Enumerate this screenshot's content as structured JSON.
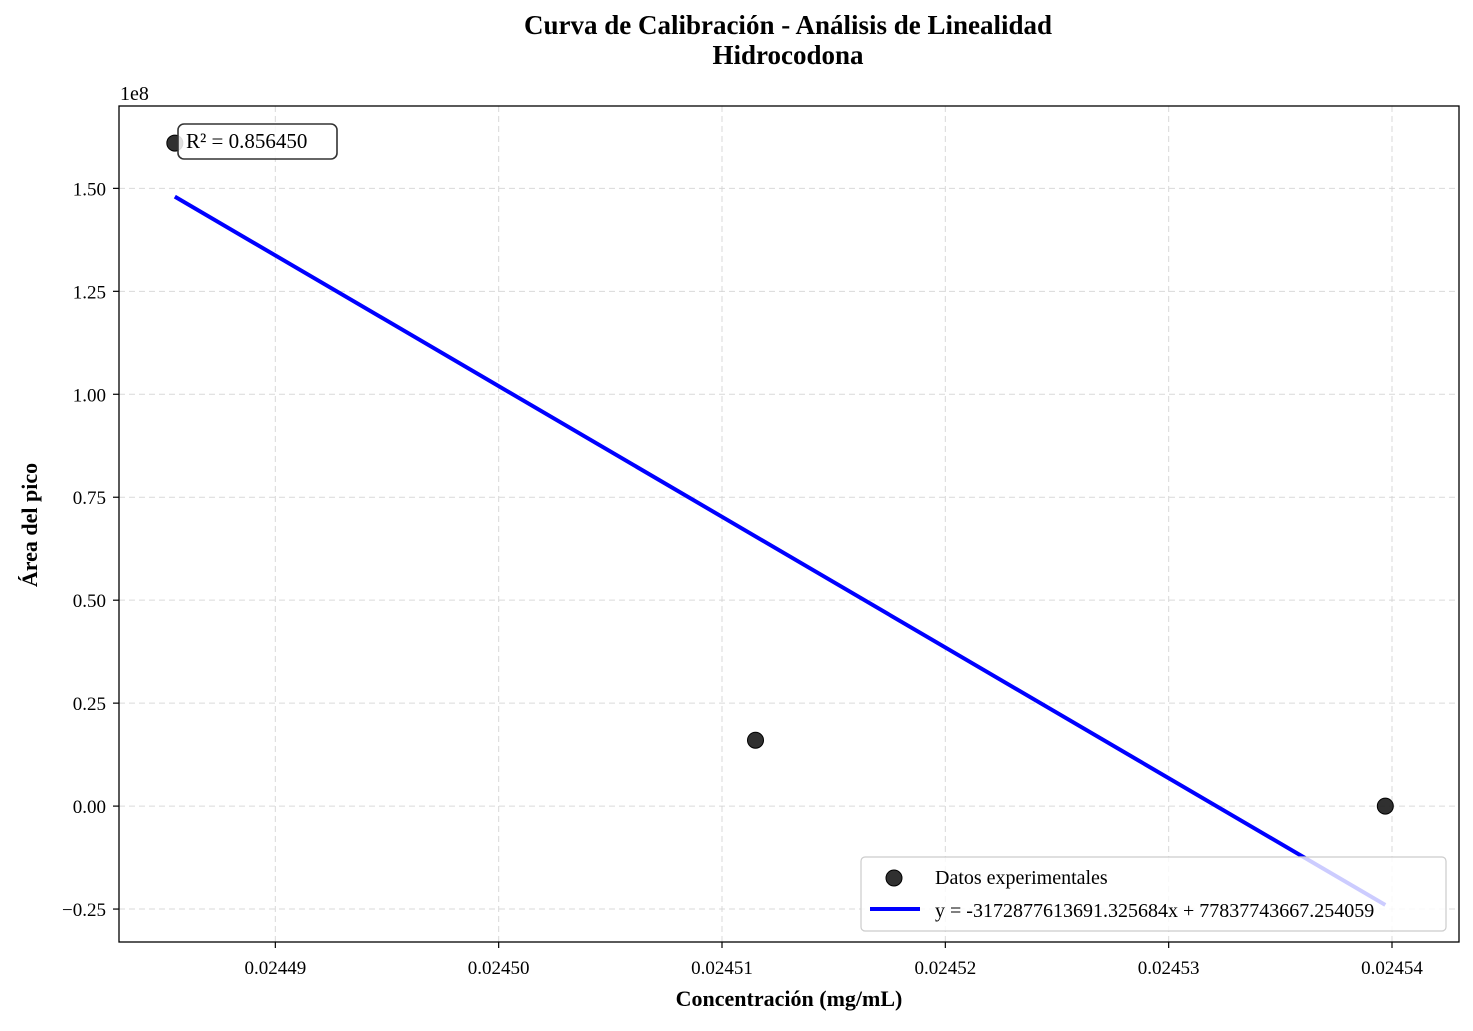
{
  "chart_data": {
    "type": "scatter",
    "title": "Curva de Calibración - Análisis de Linealidad",
    "subtitle": "Hidrocodona",
    "xlabel": "Concentración (mg/mL)",
    "ylabel": "Área del pico",
    "y_offset_label": "1e8",
    "y_scale": 100000000,
    "xlim": [
      0.024483,
      0.024543
    ],
    "ylim": [
      -0.33,
      1.7
    ],
    "x_ticks": [
      0.02449,
      0.0245,
      0.02451,
      0.02452,
      0.02453,
      0.02454
    ],
    "x_tick_labels": [
      "0.02449",
      "0.02450",
      "0.02451",
      "0.02452",
      "0.02453",
      "0.02454"
    ],
    "y_ticks": [
      -0.25,
      0.0,
      0.25,
      0.5,
      0.75,
      1.0,
      1.25,
      1.5
    ],
    "y_tick_labels": [
      "−0.25",
      "0.00",
      "0.25",
      "0.50",
      "0.75",
      "1.00",
      "1.25",
      "1.50"
    ],
    "grid": true,
    "legend_position": "bottom-right",
    "series": [
      {
        "name": "Datos experimentales",
        "kind": "scatter",
        "color": "#1a1a1a",
        "x": [
          0.0244855,
          0.0245115,
          0.0245397
        ],
        "y": [
          1.61,
          0.16,
          0.0
        ]
      },
      {
        "name": "y = -3172877613691.325684x + 77837743667.254059",
        "kind": "line",
        "color": "#0000ff",
        "x": [
          0.0244855,
          0.0245397
        ],
        "y": [
          1.48,
          -0.24
        ]
      }
    ],
    "annotation": {
      "text": "R² = 0.856450",
      "position": "top-left"
    }
  }
}
